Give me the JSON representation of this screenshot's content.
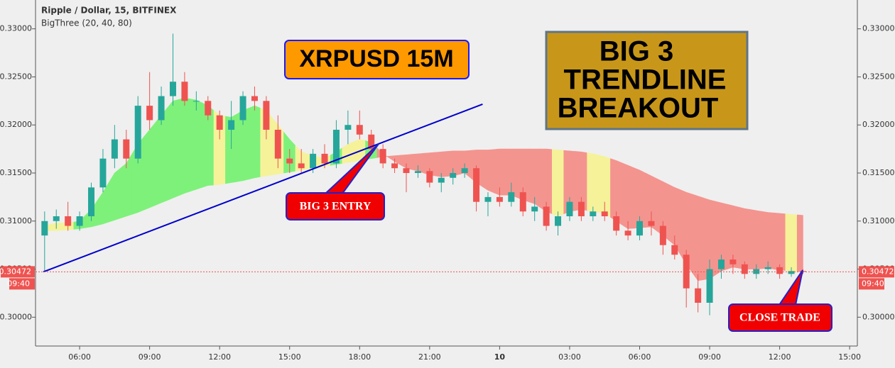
{
  "chart_data": {
    "type": "candlestick",
    "title": "Ripple / Dollar, 15, BITFINEX",
    "subtitle": "BigThree (20, 40, 80)",
    "xlim": [
      4.11,
      39.33
    ],
    "ylim": [
      0.297,
      0.333
    ],
    "xticks": [
      {
        "value": 6,
        "label": "06:00"
      },
      {
        "value": 9,
        "label": "09:00"
      },
      {
        "value": 12,
        "label": "12:00"
      },
      {
        "value": 15,
        "label": "15:00"
      },
      {
        "value": 18,
        "label": "18:00"
      },
      {
        "value": 21,
        "label": "21:00"
      },
      {
        "value": 24,
        "label": "10"
      },
      {
        "value": 27,
        "label": "03:00"
      },
      {
        "value": 30,
        "label": "06:00"
      },
      {
        "value": 33,
        "label": "09:00"
      },
      {
        "value": 36,
        "label": "12:00"
      },
      {
        "value": 39,
        "label": "15:00"
      }
    ],
    "yticks": [
      {
        "value": 0.3,
        "label": "0.30000"
      },
      {
        "value": 0.305,
        "label": "0.30500"
      },
      {
        "value": 0.31,
        "label": "0.31000"
      },
      {
        "value": 0.315,
        "label": "0.31500"
      },
      {
        "value": 0.32,
        "label": "0.32000"
      },
      {
        "value": 0.325,
        "label": "0.32500"
      },
      {
        "value": 0.33,
        "label": "0.33000"
      }
    ],
    "up_color": "#26a69a",
    "down_color": "#ef5350",
    "x": [
      4.5,
      5,
      5.5,
      6,
      6.5,
      7,
      7.5,
      8,
      8.5,
      9,
      9.5,
      10,
      10.5,
      11,
      11.5,
      12,
      12.5,
      13,
      13.5,
      14,
      14.5,
      15,
      15.5,
      16,
      16.5,
      17,
      17.5,
      18,
      18.5,
      19,
      19.5,
      20,
      20.5,
      21,
      21.5,
      22,
      22.5,
      23,
      23.5,
      24,
      24.5,
      25,
      25.5,
      26,
      26.5,
      27,
      27.5,
      28,
      28.5,
      29,
      29.5,
      30,
      30.5,
      31,
      31.5,
      32,
      32.5,
      33,
      33.5,
      34,
      34.5,
      35,
      35.5,
      36,
      36.5,
      37
    ],
    "candles": [
      [
        0.3085,
        0.311,
        0.3047,
        0.31
      ],
      [
        0.31,
        0.3112,
        0.3092,
        0.3105
      ],
      [
        0.3105,
        0.312,
        0.309,
        0.3095
      ],
      [
        0.3095,
        0.311,
        0.309,
        0.3105
      ],
      [
        0.3105,
        0.314,
        0.31,
        0.3135
      ],
      [
        0.3135,
        0.3175,
        0.313,
        0.3165
      ],
      [
        0.3165,
        0.32,
        0.3155,
        0.3185
      ],
      [
        0.3185,
        0.3195,
        0.3155,
        0.3165
      ],
      [
        0.3165,
        0.323,
        0.316,
        0.322
      ],
      [
        0.322,
        0.3255,
        0.3195,
        0.3205
      ],
      [
        0.3205,
        0.324,
        0.32,
        0.323
      ],
      [
        0.323,
        0.3295,
        0.322,
        0.3245
      ],
      [
        0.3245,
        0.3255,
        0.322,
        0.3225
      ],
      [
        0.3225,
        0.3235,
        0.3215,
        0.3225
      ],
      [
        0.3225,
        0.323,
        0.3205,
        0.321
      ],
      [
        0.321,
        0.3215,
        0.3185,
        0.3195
      ],
      [
        0.3195,
        0.3225,
        0.3175,
        0.3205
      ],
      [
        0.3205,
        0.3235,
        0.32,
        0.323
      ],
      [
        0.323,
        0.324,
        0.3215,
        0.3225
      ],
      [
        0.3225,
        0.323,
        0.3185,
        0.3195
      ],
      [
        0.3195,
        0.321,
        0.3155,
        0.3165
      ],
      [
        0.3165,
        0.3175,
        0.315,
        0.316
      ],
      [
        0.316,
        0.3175,
        0.315,
        0.3155
      ],
      [
        0.3155,
        0.3175,
        0.315,
        0.317
      ],
      [
        0.317,
        0.318,
        0.3155,
        0.316
      ],
      [
        0.316,
        0.3205,
        0.3155,
        0.3195
      ],
      [
        0.3195,
        0.3215,
        0.318,
        0.32
      ],
      [
        0.32,
        0.3215,
        0.3185,
        0.319
      ],
      [
        0.319,
        0.3195,
        0.317,
        0.3175
      ],
      [
        0.3175,
        0.318,
        0.3155,
        0.316
      ],
      [
        0.316,
        0.3165,
        0.315,
        0.3155
      ],
      [
        0.3155,
        0.316,
        0.313,
        0.315
      ],
      [
        0.315,
        0.3158,
        0.3145,
        0.3152
      ],
      [
        0.3152,
        0.3155,
        0.3135,
        0.314
      ],
      [
        0.314,
        0.315,
        0.313,
        0.3145
      ],
      [
        0.3145,
        0.3155,
        0.3138,
        0.315
      ],
      [
        0.315,
        0.316,
        0.3145,
        0.3155
      ],
      [
        0.3155,
        0.3158,
        0.311,
        0.312
      ],
      [
        0.312,
        0.313,
        0.3105,
        0.3125
      ],
      [
        0.3125,
        0.3135,
        0.3115,
        0.312
      ],
      [
        0.312,
        0.314,
        0.3115,
        0.313
      ],
      [
        0.313,
        0.3135,
        0.3105,
        0.311
      ],
      [
        0.311,
        0.3125,
        0.31,
        0.3115
      ],
      [
        0.3115,
        0.312,
        0.309,
        0.3095
      ],
      [
        0.3095,
        0.311,
        0.3085,
        0.3105
      ],
      [
        0.3105,
        0.3125,
        0.31,
        0.312
      ],
      [
        0.312,
        0.3125,
        0.31,
        0.3105
      ],
      [
        0.3105,
        0.3115,
        0.31,
        0.311
      ],
      [
        0.311,
        0.312,
        0.31,
        0.3105
      ],
      [
        0.3105,
        0.311,
        0.3085,
        0.309
      ],
      [
        0.309,
        0.31,
        0.308,
        0.3085
      ],
      [
        0.3085,
        0.3105,
        0.308,
        0.31
      ],
      [
        0.31,
        0.311,
        0.3085,
        0.3095
      ],
      [
        0.3095,
        0.31,
        0.3065,
        0.3075
      ],
      [
        0.3075,
        0.3085,
        0.306,
        0.3065
      ],
      [
        0.3065,
        0.307,
        0.301,
        0.303
      ],
      [
        0.303,
        0.3045,
        0.3005,
        0.3015
      ],
      [
        0.3015,
        0.306,
        0.3002,
        0.305
      ],
      [
        0.305,
        0.3065,
        0.304,
        0.306
      ],
      [
        0.306,
        0.3065,
        0.3045,
        0.3055
      ],
      [
        0.3055,
        0.3058,
        0.304,
        0.3045
      ],
      [
        0.3045,
        0.3055,
        0.304,
        0.305
      ],
      [
        0.305,
        0.3058,
        0.3045,
        0.3052
      ],
      [
        0.3052,
        0.3055,
        0.304,
        0.3045
      ],
      [
        0.3045,
        0.3052,
        0.3042,
        0.3048
      ],
      [
        0.3048,
        0.305,
        0.3045,
        0.30472
      ]
    ],
    "fast_ma": [
      0.3095,
      0.3098,
      0.3098,
      0.31,
      0.3112,
      0.313,
      0.315,
      0.316,
      0.318,
      0.3195,
      0.321,
      0.3225,
      0.3228,
      0.3226,
      0.322,
      0.321,
      0.3208,
      0.3215,
      0.322,
      0.3215,
      0.32,
      0.3185,
      0.3172,
      0.3168,
      0.3165,
      0.3172,
      0.318,
      0.3185,
      0.3182,
      0.317,
      0.3162,
      0.3155,
      0.3152,
      0.3148,
      0.3146,
      0.3147,
      0.315,
      0.314,
      0.3132,
      0.3127,
      0.3127,
      0.3122,
      0.3118,
      0.311,
      0.3105,
      0.311,
      0.3112,
      0.311,
      0.3108,
      0.31,
      0.3092,
      0.3093,
      0.3094,
      0.3085,
      0.3075,
      0.3055,
      0.3038,
      0.304,
      0.3048,
      0.3052,
      0.305,
      0.305,
      0.3051,
      0.3049,
      0.3048,
      0.3047
    ],
    "slow_ma": [
      0.309,
      0.309,
      0.3091,
      0.3092,
      0.3094,
      0.3097,
      0.3101,
      0.3105,
      0.3109,
      0.3114,
      0.3119,
      0.3124,
      0.3129,
      0.3133,
      0.3137,
      0.3138,
      0.314,
      0.3142,
      0.3145,
      0.3147,
      0.3149,
      0.3151,
      0.3153,
      0.3155,
      0.3157,
      0.3159,
      0.3161,
      0.3163,
      0.3165,
      0.3167,
      0.3168,
      0.3169,
      0.317,
      0.3171,
      0.3172,
      0.3173,
      0.3173,
      0.3174,
      0.3174,
      0.3175,
      0.3175,
      0.3175,
      0.3175,
      0.3175,
      0.3174,
      0.3173,
      0.3172,
      0.317,
      0.3167,
      0.3163,
      0.3158,
      0.3153,
      0.3147,
      0.3141,
      0.3135,
      0.313,
      0.3126,
      0.3122,
      0.3119,
      0.3116,
      0.3113,
      0.3111,
      0.3109,
      0.3108,
      0.3107,
      0.3106
    ],
    "band_colors": [
      "#f5f29a",
      "#f5f29a",
      "#f5f29a",
      "#7ef17a",
      "#7ef17a",
      "#7ef17a",
      "#7ef17a",
      "#7ef17a",
      "#7ef17a",
      "#7ef17a",
      "#7ef17a",
      "#7ef17a",
      "#7ef17a",
      "#7ef17a",
      "#7ef17a",
      "#f5f29a",
      "#7ef17a",
      "#7ef17a",
      "#7ef17a",
      "#f5f29a",
      "#f5f29a",
      "#7ef17a",
      "#f5f29a",
      "#f5f29a",
      "#f5f29a",
      "#7ef17a",
      "#f5f29a",
      "#f5f29a",
      "#7ef17a",
      "#f4948f",
      "#f4948f",
      "#f4948f",
      "#f4948f",
      "#f4948f",
      "#f4948f",
      "#f4948f",
      "#f4948f",
      "#f4948f",
      "#f4948f",
      "#f4948f",
      "#f4948f",
      "#f4948f",
      "#f4948f",
      "#f4948f",
      "#f5f29a",
      "#f4948f",
      "#f4948f",
      "#f5f29a",
      "#f5f29a",
      "#f4948f",
      "#f4948f",
      "#f4948f",
      "#f4948f",
      "#f4948f",
      "#f4948f",
      "#f4948f",
      "#f4948f",
      "#f4948f",
      "#f4948f",
      "#f4948f",
      "#f4948f",
      "#f4948f",
      "#f4948f",
      "#f4948f",
      "#f5f29a",
      "#f4948f"
    ],
    "trendline": {
      "x": [
        4.45,
        23.27
      ],
      "y": [
        0.30472,
        0.32216
      ],
      "color": "#0000cc"
    },
    "last_price": {
      "value": 0.30472,
      "label": "0.30472"
    },
    "countdown": "09:40",
    "annotations": {
      "symbol": "XRPUSD 15M",
      "headline": [
        "BIG 3",
        "TRENDLINE",
        "BREAKOUT"
      ],
      "entry": "BIG 3 ENTRY",
      "close": "CLOSE TRADE"
    }
  }
}
